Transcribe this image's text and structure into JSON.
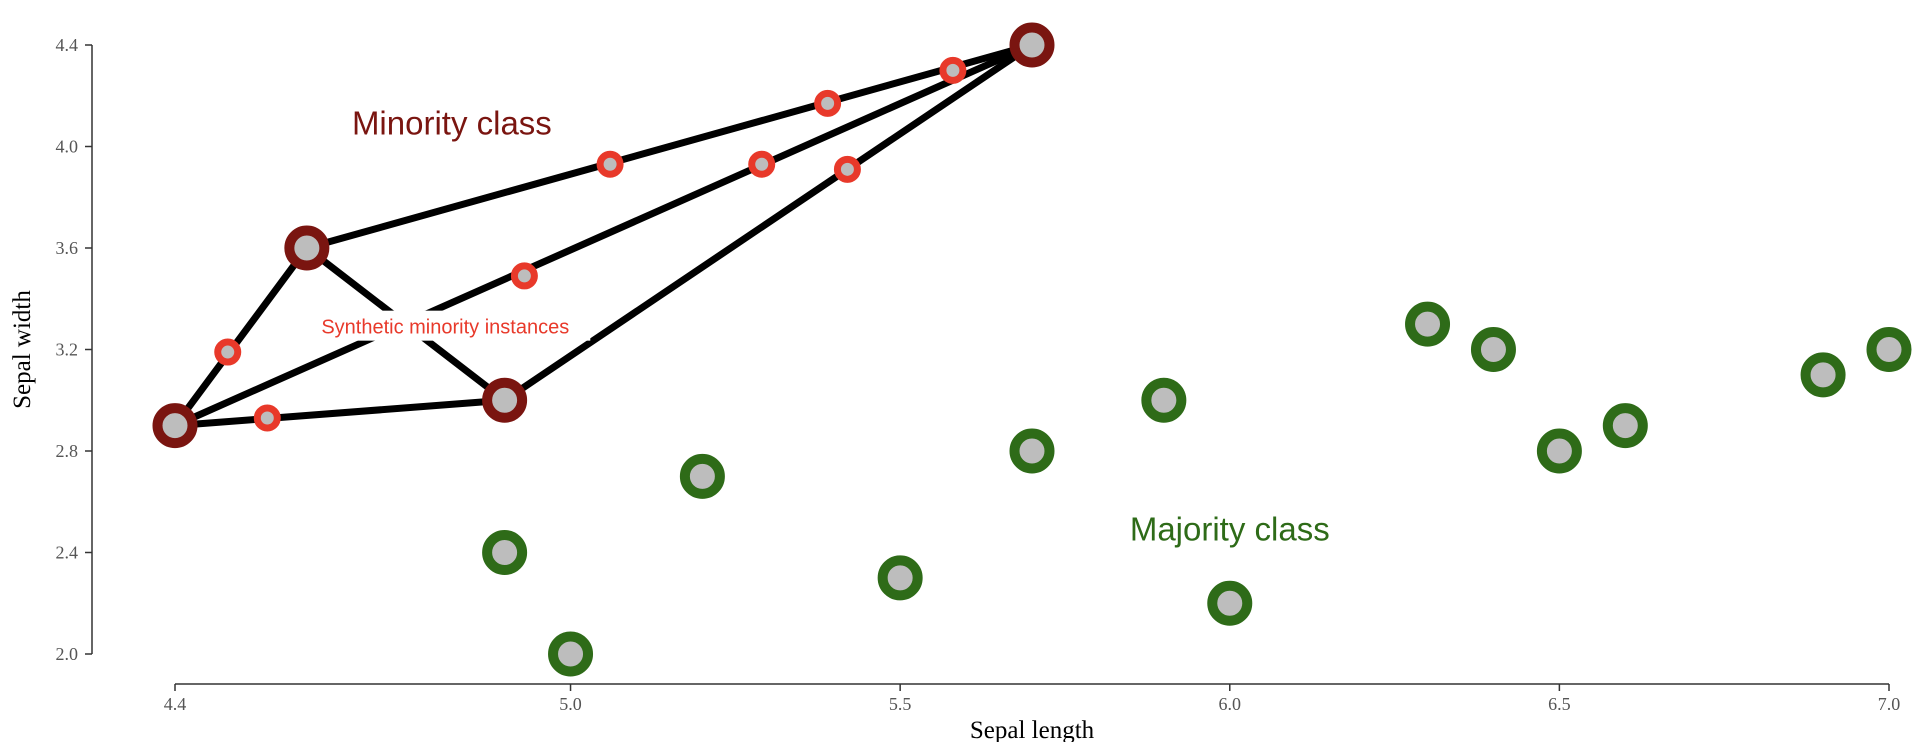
{
  "chart_data": {
    "type": "scatter",
    "xlabel": "Sepal length",
    "ylabel": "Sepal width",
    "xlim": [
      4.4,
      7.0
    ],
    "ylim": [
      2.0,
      4.4
    ],
    "x_ticks": [
      "4.4",
      "5.0",
      "5.5",
      "6.0",
      "6.5",
      "7.0"
    ],
    "y_ticks": [
      "2.0",
      "2.4",
      "2.8",
      "3.2",
      "3.6",
      "4.0",
      "4.4"
    ],
    "grid": false,
    "series": [
      {
        "name": "Minority class",
        "color": "#7a1510",
        "points": [
          [
            4.4,
            2.9
          ],
          [
            4.6,
            3.6
          ],
          [
            4.9,
            3.0
          ],
          [
            5.7,
            4.4
          ]
        ]
      },
      {
        "name": "Majority class",
        "color": "#2e6b18",
        "points": [
          [
            4.9,
            2.4
          ],
          [
            5.0,
            2.0
          ],
          [
            5.2,
            2.7
          ],
          [
            5.5,
            2.3
          ],
          [
            5.7,
            2.8
          ],
          [
            5.9,
            3.0
          ],
          [
            6.0,
            2.2
          ],
          [
            6.3,
            3.3
          ],
          [
            6.4,
            3.2
          ],
          [
            6.5,
            2.8
          ],
          [
            6.6,
            2.9
          ],
          [
            6.9,
            3.1
          ],
          [
            7.0,
            3.2
          ]
        ]
      },
      {
        "name": "Synthetic minority instances",
        "color": "#e8392a",
        "points": [
          [
            4.48,
            3.19
          ],
          [
            4.54,
            2.93
          ],
          [
            4.93,
            3.49
          ],
          [
            5.06,
            3.93
          ],
          [
            5.29,
            3.93
          ],
          [
            5.39,
            4.17
          ],
          [
            5.42,
            3.91
          ],
          [
            5.58,
            4.3
          ]
        ]
      }
    ],
    "edges": [
      [
        [
          4.4,
          2.9
        ],
        [
          4.6,
          3.6
        ]
      ],
      [
        [
          4.4,
          2.9
        ],
        [
          4.9,
          3.0
        ]
      ],
      [
        [
          4.4,
          2.9
        ],
        [
          5.7,
          4.4
        ]
      ],
      [
        [
          4.6,
          3.6
        ],
        [
          4.9,
          3.0
        ]
      ],
      [
        [
          4.6,
          3.6
        ],
        [
          5.7,
          4.4
        ]
      ],
      [
        [
          4.9,
          3.0
        ],
        [
          5.7,
          4.4
        ]
      ]
    ],
    "annotations": [
      {
        "text": "Minority class",
        "x": 4.82,
        "y": 4.09,
        "color": "#7a1510"
      },
      {
        "text": "Synthetic minority instances",
        "x": 4.81,
        "y": 3.29,
        "color": "#e8392a"
      },
      {
        "text": "Majority class",
        "x": 6.0,
        "y": 2.49,
        "color": "#2e6b18"
      }
    ]
  }
}
